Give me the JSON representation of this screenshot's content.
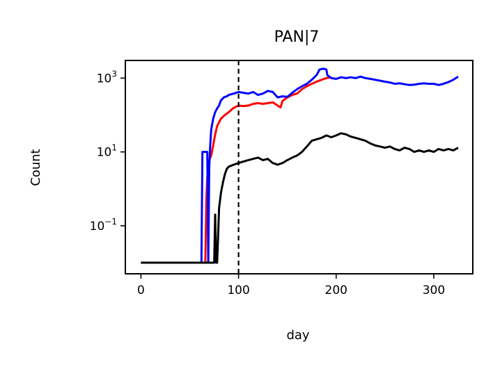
{
  "chart_data": {
    "type": "line",
    "title": "PAN|7",
    "xlabel": "day",
    "ylabel": "Count",
    "xlim": [
      -16,
      340
    ],
    "ylim": [
      0.005,
      3000
    ],
    "yscale": "log",
    "xticks": [
      0,
      100,
      200,
      300
    ],
    "xtick_labels": [
      "0",
      "100",
      "200",
      "300"
    ],
    "yticks": [
      {
        "base": "10",
        "exp": "3",
        "value": 1000
      },
      {
        "base": "10",
        "exp": "1",
        "value": 10
      },
      {
        "base": "10",
        "exp": "−1",
        "value": 0.1
      }
    ],
    "grid": false,
    "vline": {
      "x": 100,
      "style": "dashed",
      "color": "#000000"
    },
    "series": [
      {
        "color": "#ff0000",
        "points": [
          [
            0,
            0.01
          ],
          [
            66,
            0.01
          ],
          [
            67,
            0.5
          ],
          [
            68,
            2
          ],
          [
            69,
            4
          ],
          [
            70,
            6
          ],
          [
            72,
            8
          ],
          [
            74,
            15
          ],
          [
            76,
            30
          ],
          [
            78,
            50
          ],
          [
            82,
            80
          ],
          [
            86,
            100
          ],
          [
            90,
            120
          ],
          [
            94,
            150
          ],
          [
            98,
            170
          ],
          [
            100,
            180
          ],
          [
            105,
            175
          ],
          [
            110,
            180
          ],
          [
            115,
            200
          ],
          [
            120,
            210
          ],
          [
            125,
            200
          ],
          [
            130,
            210
          ],
          [
            135,
            220
          ],
          [
            140,
            180
          ],
          [
            143,
            160
          ],
          [
            145,
            240
          ],
          [
            150,
            300
          ],
          [
            155,
            350
          ],
          [
            160,
            380
          ],
          [
            165,
            500
          ],
          [
            170,
            600
          ],
          [
            175,
            700
          ],
          [
            180,
            800
          ],
          [
            185,
            900
          ],
          [
            190,
            1000
          ],
          [
            195,
            1050
          ]
        ]
      },
      {
        "color": "#0000ff",
        "points": [
          [
            0,
            0.01
          ],
          [
            62,
            0.01
          ],
          [
            63,
            10
          ],
          [
            68,
            10
          ],
          [
            69,
            0.01
          ],
          [
            70,
            4
          ],
          [
            71,
            15
          ],
          [
            72,
            40
          ],
          [
            74,
            80
          ],
          [
            76,
            120
          ],
          [
            78,
            150
          ],
          [
            80,
            180
          ],
          [
            82,
            250
          ],
          [
            85,
            300
          ],
          [
            88,
            320
          ],
          [
            90,
            350
          ],
          [
            95,
            380
          ],
          [
            100,
            420
          ],
          [
            105,
            400
          ],
          [
            110,
            380
          ],
          [
            115,
            420
          ],
          [
            120,
            350
          ],
          [
            125,
            380
          ],
          [
            130,
            450
          ],
          [
            135,
            420
          ],
          [
            140,
            300
          ],
          [
            145,
            320
          ],
          [
            150,
            310
          ],
          [
            155,
            400
          ],
          [
            160,
            500
          ],
          [
            165,
            600
          ],
          [
            170,
            700
          ],
          [
            175,
            900
          ],
          [
            180,
            1200
          ],
          [
            183,
            1700
          ],
          [
            187,
            1800
          ],
          [
            190,
            1700
          ],
          [
            191,
            1200
          ],
          [
            195,
            1000
          ],
          [
            200,
            950
          ],
          [
            205,
            1050
          ],
          [
            210,
            1000
          ],
          [
            215,
            1050
          ],
          [
            220,
            1000
          ],
          [
            225,
            1100
          ],
          [
            230,
            1000
          ],
          [
            235,
            950
          ],
          [
            240,
            900
          ],
          [
            245,
            850
          ],
          [
            250,
            800
          ],
          [
            255,
            760
          ],
          [
            260,
            700
          ],
          [
            265,
            720
          ],
          [
            270,
            680
          ],
          [
            275,
            650
          ],
          [
            280,
            660
          ],
          [
            285,
            700
          ],
          [
            290,
            720
          ],
          [
            295,
            700
          ],
          [
            300,
            700
          ],
          [
            305,
            650
          ],
          [
            310,
            700
          ],
          [
            315,
            780
          ],
          [
            320,
            900
          ],
          [
            325,
            1100
          ]
        ]
      },
      {
        "color": "#000000",
        "points": [
          [
            0,
            0.01
          ],
          [
            75,
            0.01
          ],
          [
            76,
            0.2
          ],
          [
            77,
            0.01
          ],
          [
            78,
            0.01
          ],
          [
            79,
            0.05
          ],
          [
            80,
            0.3
          ],
          [
            82,
            0.8
          ],
          [
            84,
            1.5
          ],
          [
            86,
            2.5
          ],
          [
            88,
            3.5
          ],
          [
            90,
            4
          ],
          [
            95,
            4.5
          ],
          [
            100,
            5
          ],
          [
            105,
            5.5
          ],
          [
            110,
            6
          ],
          [
            115,
            6.5
          ],
          [
            120,
            7
          ],
          [
            125,
            6
          ],
          [
            130,
            6.5
          ],
          [
            135,
            5
          ],
          [
            140,
            4.5
          ],
          [
            145,
            5
          ],
          [
            150,
            6
          ],
          [
            155,
            7
          ],
          [
            160,
            8
          ],
          [
            165,
            10
          ],
          [
            170,
            14
          ],
          [
            175,
            20
          ],
          [
            180,
            22
          ],
          [
            185,
            24
          ],
          [
            190,
            28
          ],
          [
            195,
            25
          ],
          [
            200,
            28
          ],
          [
            205,
            32
          ],
          [
            210,
            30
          ],
          [
            215,
            26
          ],
          [
            220,
            24
          ],
          [
            225,
            22
          ],
          [
            230,
            20
          ],
          [
            235,
            17
          ],
          [
            240,
            15
          ],
          [
            245,
            14
          ],
          [
            250,
            13
          ],
          [
            255,
            14
          ],
          [
            260,
            12
          ],
          [
            265,
            11
          ],
          [
            270,
            13
          ],
          [
            275,
            12
          ],
          [
            280,
            10
          ],
          [
            285,
            11
          ],
          [
            290,
            10
          ],
          [
            295,
            11
          ],
          [
            300,
            10
          ],
          [
            305,
            12
          ],
          [
            310,
            11
          ],
          [
            315,
            12
          ],
          [
            320,
            11
          ],
          [
            325,
            13
          ]
        ]
      }
    ]
  }
}
